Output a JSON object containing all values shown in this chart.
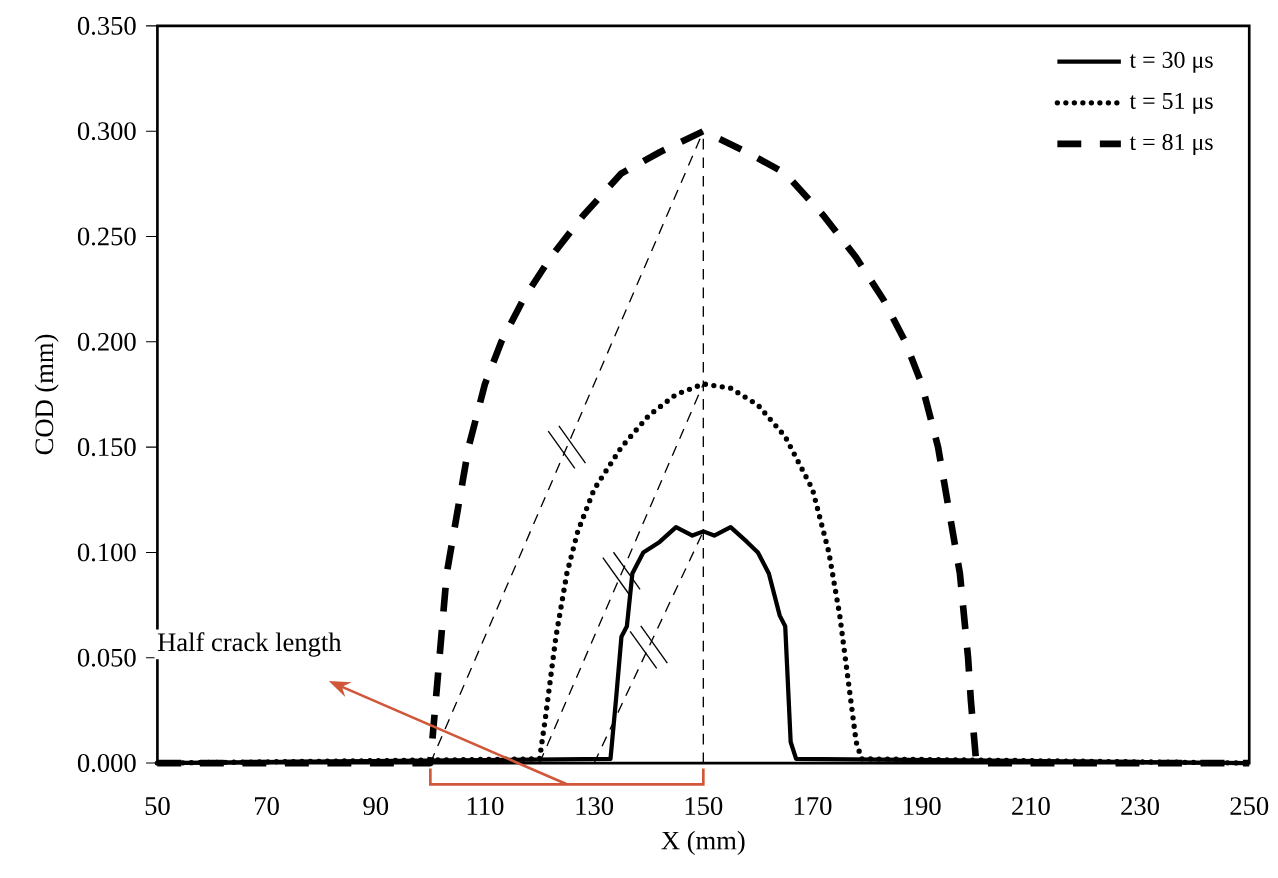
{
  "chart_data": {
    "type": "line",
    "xlabel": "X (mm)",
    "ylabel": "COD (mm)",
    "xlim": [
      50,
      250
    ],
    "ylim": [
      0,
      0.35
    ],
    "xticks": [
      50,
      70,
      90,
      110,
      130,
      150,
      170,
      190,
      210,
      230,
      250
    ],
    "yticks": [
      {
        "value": 0,
        "label": "0.000"
      },
      {
        "value": 0.05,
        "label": "0.050"
      },
      {
        "value": 0.1,
        "label": "0.100"
      },
      {
        "value": 0.15,
        "label": "0.150"
      },
      {
        "value": 0.2,
        "label": "0.200"
      },
      {
        "value": 0.25,
        "label": "0.250"
      },
      {
        "value": 0.3,
        "label": "0.300"
      },
      {
        "value": 0.35,
        "label": "0.350"
      }
    ],
    "legend": "top right",
    "grid": false,
    "series": [
      {
        "name": "t = 30 μs",
        "color": "#000000",
        "line_style": "solid",
        "x": [
          50,
          133,
          134,
          135,
          136,
          137,
          139,
          142,
          145,
          148,
          150,
          152,
          155,
          158,
          160,
          162,
          164,
          165,
          166,
          167,
          250
        ],
        "values": [
          0,
          0.002,
          0.03,
          0.06,
          0.065,
          0.09,
          0.1,
          0.105,
          0.112,
          0.108,
          0.11,
          0.108,
          0.112,
          0.105,
          0.1,
          0.09,
          0.07,
          0.065,
          0.01,
          0.002,
          0
        ]
      },
      {
        "name": "t = 51 μs",
        "color": "#000000",
        "line_style": "dotted",
        "x": [
          50,
          120,
          121,
          123,
          125,
          127,
          130,
          135,
          140,
          145,
          150,
          155,
          160,
          165,
          170,
          173,
          175,
          177,
          178,
          179,
          250
        ],
        "values": [
          0,
          0.002,
          0.02,
          0.06,
          0.09,
          0.11,
          0.13,
          0.15,
          0.165,
          0.175,
          0.18,
          0.178,
          0.17,
          0.155,
          0.13,
          0.1,
          0.07,
          0.03,
          0.01,
          0.002,
          0
        ]
      },
      {
        "name": "t = 81 μs",
        "color": "#000000",
        "line_style": "dashed",
        "x": [
          50,
          100,
          101,
          102,
          103,
          105,
          107,
          110,
          113,
          117,
          122,
          128,
          135,
          142,
          150,
          158,
          165,
          172,
          178,
          183,
          187,
          190,
          193,
          195,
          197,
          198.5,
          199,
          200,
          250
        ],
        "values": [
          0,
          0,
          0.03,
          0.06,
          0.09,
          0.12,
          0.15,
          0.18,
          0.2,
          0.22,
          0.24,
          0.26,
          0.28,
          0.29,
          0.3,
          0.29,
          0.28,
          0.26,
          0.24,
          0.22,
          0.2,
          0.18,
          0.15,
          0.12,
          0.09,
          0.05,
          0.03,
          0,
          0
        ]
      },
      {
        "type": "line",
        "color": "#000000",
        "line_style": "dashed",
        "x": [
          100,
          150
        ],
        "values": [
          0,
          0.3
        ]
      },
      {
        "type": "line",
        "color": "#000000",
        "line_style": "dashed",
        "x": [
          120,
          150
        ],
        "values": [
          0,
          0.18
        ]
      },
      {
        "type": "line",
        "color": "#000000",
        "line_style": "dashed",
        "x": [
          130,
          150
        ],
        "values": [
          0,
          0.11
        ]
      }
    ],
    "ref_lines": [
      {
        "axis": "x",
        "value": 150,
        "color": "#000000",
        "line_style": "dashed"
      }
    ],
    "annotations": [
      "Half crack length"
    ]
  }
}
